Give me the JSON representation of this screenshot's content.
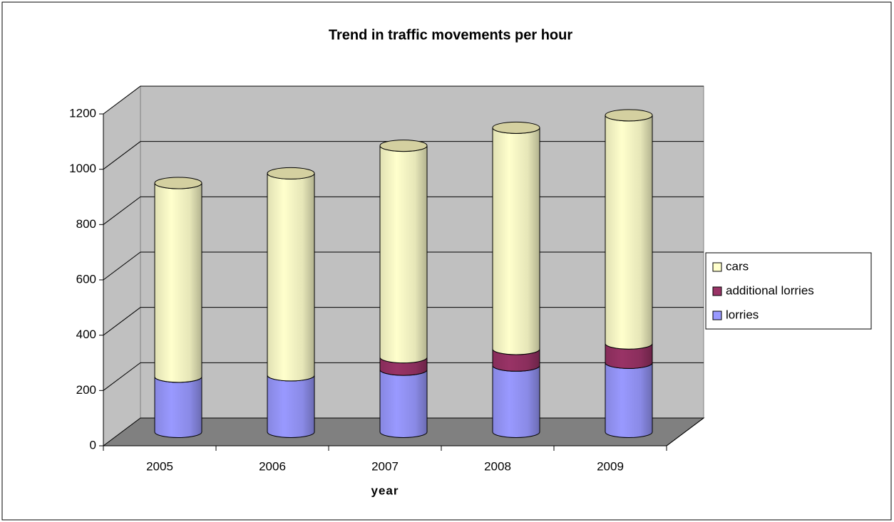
{
  "chart_data": {
    "type": "bar3d_stacked_cylinder",
    "title": "Trend in traffic movements per hour",
    "x_label": "year",
    "categories": [
      "2005",
      "2006",
      "2007",
      "2008",
      "2009"
    ],
    "series": [
      {
        "name": "lorries",
        "color": "#9999ff",
        "values": [
          200,
          205,
          225,
          240,
          250
        ]
      },
      {
        "name": "additional lorries",
        "color": "#993366",
        "values": [
          0,
          0,
          45,
          60,
          70
        ]
      },
      {
        "name": "cars",
        "color": "#ffffcc",
        "values": [
          700,
          730,
          765,
          800,
          825
        ]
      }
    ],
    "ylim": [
      0,
      1200
    ],
    "yticks": [
      0,
      200,
      400,
      600,
      800,
      1000,
      1200
    ],
    "grid": true,
    "legend": "right"
  }
}
